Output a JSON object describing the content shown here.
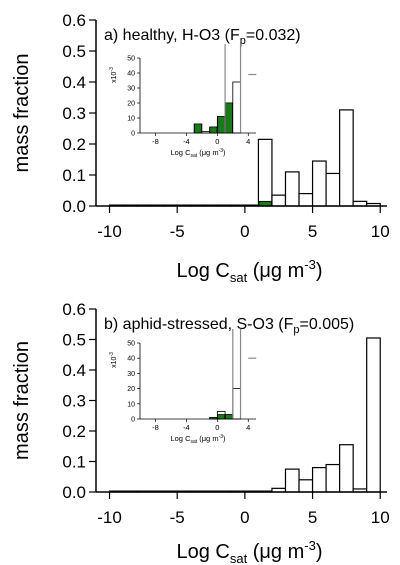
{
  "chart_data": [
    {
      "type": "bar",
      "panel_label": "a)",
      "title": "healthy, H-O3",
      "fp_label": "F",
      "fp_sub": "p",
      "fp_value": "=0.032",
      "ylabel": "mass fraction",
      "xlabel": "Log C",
      "xlabel_sub": "sat",
      "xlabel_unit_open": " (μg m",
      "xlabel_unit_sup": "-3",
      "xlabel_unit_close": ")",
      "xlim": [
        -11,
        10.5
      ],
      "ylim": [
        0,
        0.6
      ],
      "xticks": [
        "-10",
        "-5",
        "0",
        "5",
        "10"
      ],
      "xtick_values": [
        -10,
        -5,
        0,
        5,
        10
      ],
      "yticks": [
        "0.0",
        "0.1",
        "0.2",
        "0.3",
        "0.4",
        "0.5",
        "0.6"
      ],
      "ytick_values": [
        0,
        0.1,
        0.2,
        0.3,
        0.4,
        0.5,
        0.6
      ],
      "bin_width": 1,
      "bin_left_edges": [
        -10,
        -9,
        -8,
        -7,
        -6,
        -5,
        -4,
        -3,
        -2,
        -1,
        0,
        1,
        2,
        3,
        4,
        5,
        6,
        7,
        8,
        9
      ],
      "values": [
        0.003,
        0.003,
        0.003,
        0.003,
        0.003,
        0.003,
        0.003,
        0.003,
        0.003,
        0.003,
        0.003,
        0.215,
        0.035,
        0.11,
        0.04,
        0.145,
        0.105,
        0.31,
        0.015,
        0.008
      ],
      "highlight_values": [
        0,
        0,
        0,
        0,
        0,
        0,
        0,
        0,
        0,
        0,
        0,
        0.015,
        0,
        0,
        0,
        0,
        0,
        0,
        0,
        0
      ],
      "colors": {
        "bar_fill": "#ffffff",
        "bar_stroke": "#000000",
        "highlight": "#1a7a1a",
        "axis": "#000000",
        "inset_line": "#888888"
      },
      "inset": {
        "xlabel": "Log C",
        "xlabel_sub": "sat",
        "xlabel_unit_open": " (μg m",
        "xlabel_unit_sup": "-3",
        "xlabel_unit_close": ")",
        "ylabel_mult": "x10",
        "ylabel_mult_sup": "-3",
        "xlim": [
          -10,
          5
        ],
        "ylim": [
          0,
          50
        ],
        "xticks": [
          "-8",
          "-4",
          "0",
          "4"
        ],
        "xtick_values": [
          -8,
          -4,
          0,
          4
        ],
        "yticks": [
          "0",
          "10",
          "20",
          "30",
          "40",
          "50"
        ],
        "ytick_values": [
          0,
          10,
          20,
          30,
          40,
          50
        ],
        "bin_width": 1,
        "bin_left_edges": [
          -3,
          -2,
          -1,
          0,
          1,
          2
        ],
        "values": [
          6,
          1,
          4,
          11,
          20,
          34
        ],
        "highlight_values": [
          6,
          0,
          4,
          11,
          20,
          0
        ],
        "tall_lines_x": [
          1,
          3
        ],
        "short_line_x": 4,
        "short_line_y": 39
      }
    },
    {
      "type": "bar",
      "panel_label": "b)",
      "title": "aphid-stressed, S-O3",
      "fp_label": "F",
      "fp_sub": "p",
      "fp_value": "=0.005",
      "ylabel": "mass fraction",
      "xlabel": "Log C",
      "xlabel_sub": "sat",
      "xlabel_unit_open": " (μg m",
      "xlabel_unit_sup": "-3",
      "xlabel_unit_close": ")",
      "xlim": [
        -11,
        10.5
      ],
      "ylim": [
        0,
        0.6
      ],
      "xticks": [
        "-10",
        "-5",
        "0",
        "5",
        "10"
      ],
      "xtick_values": [
        -10,
        -5,
        0,
        5,
        10
      ],
      "yticks": [
        "0.0",
        "0.1",
        "0.2",
        "0.3",
        "0.4",
        "0.5",
        "0.6"
      ],
      "ytick_values": [
        0,
        0.1,
        0.2,
        0.3,
        0.4,
        0.5,
        0.6
      ],
      "bin_width": 1,
      "bin_left_edges": [
        -10,
        -9,
        -8,
        -7,
        -6,
        -5,
        -4,
        -3,
        -2,
        -1,
        0,
        1,
        2,
        3,
        4,
        5,
        6,
        7,
        8,
        9
      ],
      "values": [
        0.003,
        0.003,
        0.003,
        0.003,
        0.003,
        0.003,
        0.003,
        0.003,
        0.003,
        0.003,
        0.003,
        0.003,
        0.012,
        0.075,
        0.04,
        0.08,
        0.09,
        0.155,
        0.01,
        0.505
      ],
      "highlight_values": [],
      "colors": {
        "bar_fill": "#ffffff",
        "bar_stroke": "#000000",
        "highlight": "#1a7a1a",
        "axis": "#000000",
        "inset_line": "#888888"
      },
      "inset": {
        "xlabel": "Log C",
        "xlabel_sub": "sat",
        "xlabel_unit_open": " (μg m",
        "xlabel_unit_sup": "-3",
        "xlabel_unit_close": ")",
        "ylabel_mult": "x10",
        "ylabel_mult_sup": "-3",
        "xlim": [
          -10,
          5
        ],
        "ylim": [
          0,
          50
        ],
        "xticks": [
          "-8",
          "-4",
          "0",
          "4"
        ],
        "xtick_values": [
          -8,
          -4,
          0,
          4
        ],
        "yticks": [
          "0",
          "10",
          "20",
          "30",
          "40",
          "50"
        ],
        "ytick_values": [
          0,
          10,
          20,
          30,
          40,
          50
        ],
        "bin_width": 1,
        "bin_left_edges": [
          -1,
          0,
          1,
          2
        ],
        "values": [
          1,
          5,
          3,
          20
        ],
        "highlight_values": [
          1,
          3,
          3,
          0
        ],
        "tall_lines_x": [
          2,
          3
        ],
        "short_line_x": 4,
        "short_line_y": 40
      }
    }
  ]
}
